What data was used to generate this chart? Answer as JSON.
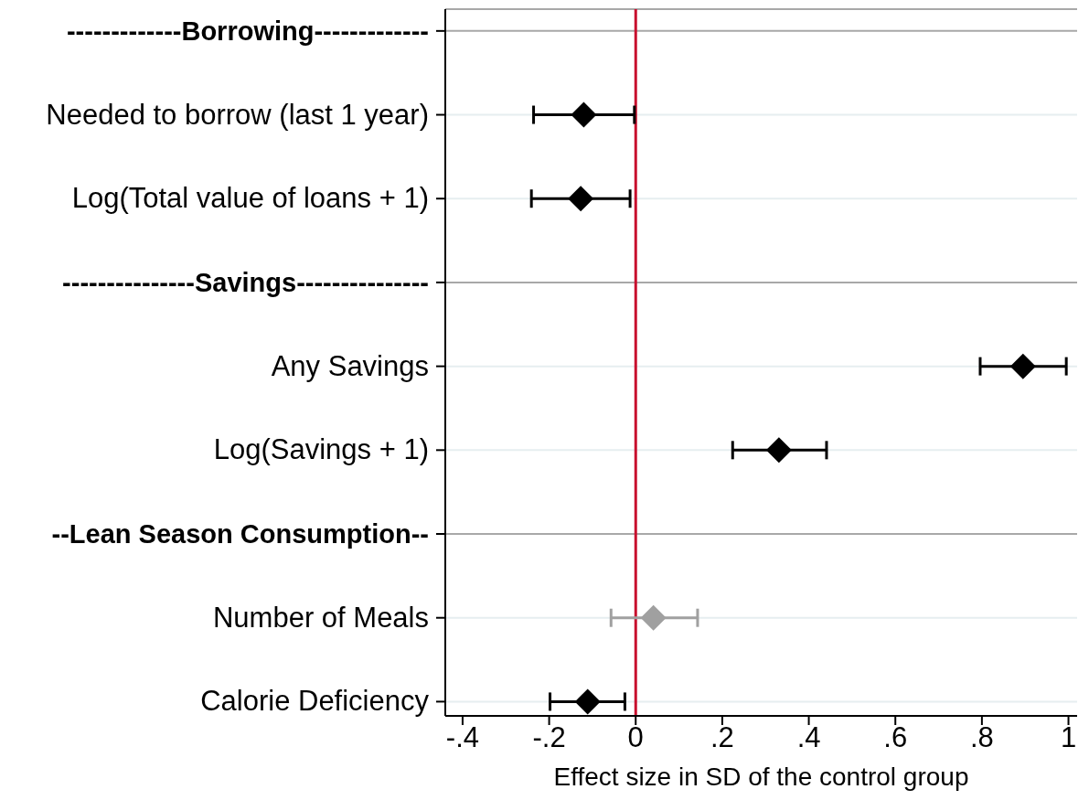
{
  "chart_data": {
    "type": "scatter",
    "orientation": "horizontal",
    "xlabel": "Effect size in SD of the control group",
    "categories": [
      "-------------Borrowing-------------",
      "Needed to borrow (last 1 year)",
      "Log(Total value of loans + 1)",
      "---------------Savings---------------",
      "Any Savings",
      "Log(Savings + 1)",
      "--Lean Season Consumption--",
      "Number of Meals",
      "Calorie Deficiency"
    ],
    "values": [
      null,
      -0.12,
      -0.127,
      null,
      0.895,
      0.331,
      null,
      0.041,
      -0.111
    ],
    "errors": [
      null,
      [
        -0.236,
        -0.003
      ],
      [
        -0.241,
        -0.013
      ],
      null,
      [
        0.796,
        0.995
      ],
      [
        0.224,
        0.441
      ],
      null,
      [
        -0.057,
        0.143
      ],
      [
        -0.198,
        -0.025
      ]
    ],
    "colors": [
      null,
      "#000000",
      "#000000",
      null,
      "#000000",
      "#000000",
      null,
      "#a0a0a0",
      "#000000"
    ],
    "marker": "diamond",
    "grid": "y",
    "xlim": [
      -0.44,
      1.02
    ],
    "xticks": [
      {
        "value": -0.4,
        "label": "-.4"
      },
      {
        "value": -0.2,
        "label": "-.2"
      },
      0,
      {
        "value": 0.2,
        "label": ".2"
      },
      {
        "value": 0.4,
        "label": ".4"
      },
      {
        "value": 0.6,
        "label": ".6"
      },
      {
        "value": 0.8,
        "label": ".8"
      },
      1
    ],
    "ref_lines": [
      {
        "axis": "x",
        "value": 0,
        "color": "#c8102e"
      }
    ]
  }
}
